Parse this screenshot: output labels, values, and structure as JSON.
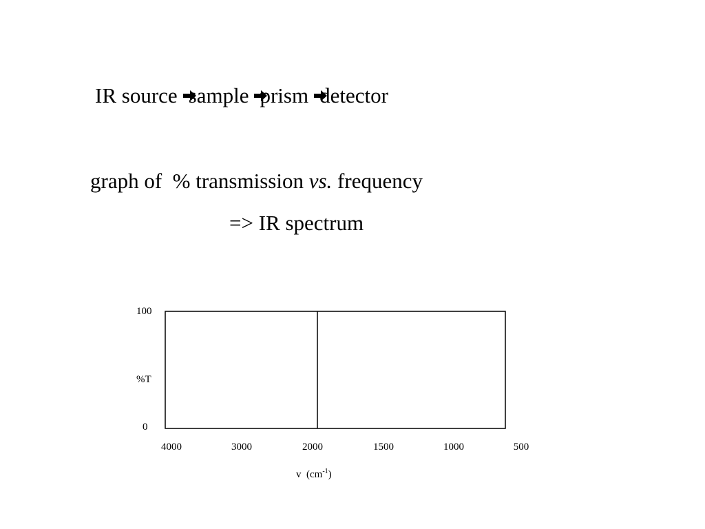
{
  "flow": {
    "steps": [
      "IR source",
      "sample",
      "prism",
      "detector"
    ]
  },
  "description": {
    "prefix": "graph of  % transmission ",
    "vs": "vs.",
    "suffix": " frequency",
    "result": "=> IR spectrum"
  },
  "chart_data": {
    "type": "line",
    "ylabel": "%T",
    "ytick_top": "100",
    "ytick_bottom": "0",
    "ylim": [
      0,
      100
    ],
    "xticks": [
      "4000",
      "3000",
      "2000",
      "1500",
      "1000",
      "500"
    ],
    "xlabel_base": "v  (cm",
    "xlabel_sup": "-1",
    "xlabel_close": ")",
    "x_reversed": true,
    "scale_change_at": 2000,
    "series": [],
    "grid": false
  }
}
